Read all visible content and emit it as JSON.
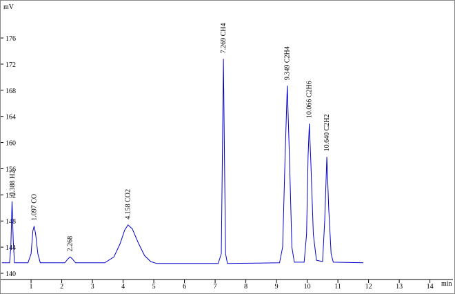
{
  "chart_data": {
    "type": "line",
    "y_label": "mV",
    "x_label": "min",
    "xlim": [
      0.01,
      14.75
    ],
    "ylim": [
      139.05,
      181.6
    ],
    "xticks": [
      1,
      2,
      3,
      4,
      5,
      6,
      7,
      8,
      9,
      10,
      11,
      12,
      13,
      14
    ],
    "yticks": [
      140,
      144,
      148,
      152,
      156,
      160,
      164,
      168,
      172,
      176
    ],
    "color": "#0000cc",
    "x": [
      0.05,
      0.3,
      0.34,
      0.38,
      0.42,
      0.46,
      0.9,
      1.0,
      1.06,
      1.1,
      1.15,
      1.22,
      1.3,
      2.1,
      2.2,
      2.27,
      2.35,
      2.45,
      3.4,
      3.7,
      3.9,
      4.05,
      4.16,
      4.3,
      4.5,
      4.7,
      4.9,
      5.1,
      7.1,
      7.2,
      7.24,
      7.27,
      7.3,
      7.34,
      7.4,
      9.1,
      9.2,
      9.28,
      9.35,
      9.42,
      9.5,
      9.58,
      9.9,
      9.98,
      10.03,
      10.07,
      10.12,
      10.2,
      10.3,
      10.5,
      10.57,
      10.64,
      10.7,
      10.78,
      10.85,
      11.83
    ],
    "values": [
      141.6,
      141.6,
      144,
      151,
      145,
      141.6,
      141.6,
      143,
      146.5,
      147.2,
      146,
      143,
      141.6,
      141.6,
      142.2,
      142.5,
      142.2,
      141.6,
      141.6,
      142.5,
      144.5,
      146.6,
      147.4,
      146.8,
      144.6,
      142.7,
      141.8,
      141.5,
      141.5,
      143,
      160,
      172.8,
      160,
      143,
      141.5,
      141.6,
      144,
      158,
      168.7,
      158,
      144,
      141.7,
      141.7,
      146,
      158,
      162.9,
      157,
      146,
      142,
      141.8,
      148,
      157.8,
      150,
      143,
      141.7,
      141.6
    ],
    "annotations": [
      {
        "x": 0.388,
        "text": "0.388  H2"
      },
      {
        "x": 1.097,
        "text": "1.097  CO"
      },
      {
        "x": 2.268,
        "text": "2.268"
      },
      {
        "x": 4.158,
        "text": "4.158  CO2"
      },
      {
        "x": 7.269,
        "text": "7.269  CH4"
      },
      {
        "x": 9.349,
        "text": "9.349  C2H4"
      },
      {
        "x": 10.066,
        "text": "10.066  C2H6"
      },
      {
        "x": 10.64,
        "text": "10.640  C2H2"
      }
    ]
  }
}
